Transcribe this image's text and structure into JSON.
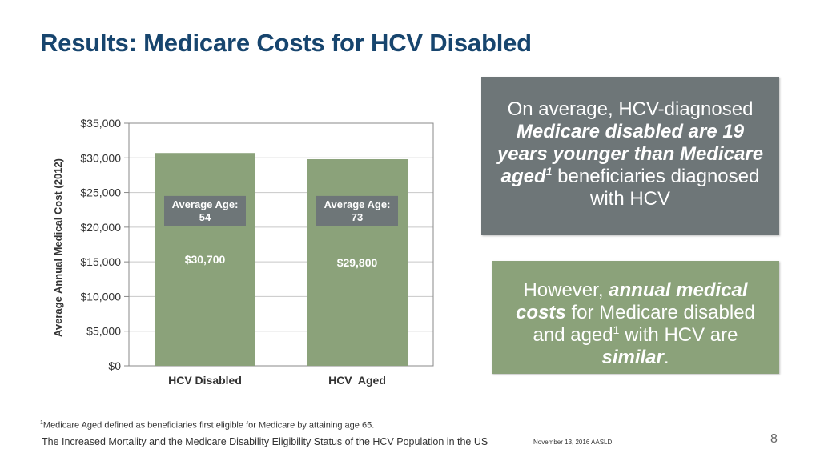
{
  "title": "Results: Medicare Costs for HCV Disabled",
  "chart_data": {
    "type": "bar",
    "categories": [
      "HCV Disabled",
      "HCV  Aged"
    ],
    "values": [
      30700,
      29800
    ],
    "value_labels": [
      "$30,700",
      "$29,800"
    ],
    "age_labels": [
      {
        "line1": "Average Age:",
        "line2": "54"
      },
      {
        "line1": "Average Age:",
        "line2": "73"
      }
    ],
    "ylabel": "Average Annual Medical Cost (2012)",
    "ylim": [
      0,
      35000
    ],
    "yticks": [
      0,
      5000,
      10000,
      15000,
      20000,
      25000,
      30000,
      35000
    ],
    "ytick_labels": [
      "$0",
      "$5,000",
      "$10,000",
      "$15,000",
      "$20,000",
      "$25,000",
      "$30,000",
      "$35,000"
    ],
    "bar_color": "#8ba27a",
    "age_box_color": "#6e7678",
    "grid": true,
    "legend": false
  },
  "callout_1": {
    "l1": "On average, HCV-diagnosed",
    "l2": "Medicare disabled are 19",
    "l3": "years younger than Medicare",
    "l4_bold": "aged",
    "l4_sup": "1",
    "l4_rest": " beneficiaries diagnosed",
    "l5": "with HCV",
    "color": "#6e7678"
  },
  "callout_2": {
    "l1_pre": "However, ",
    "l1_bold": "annual medical",
    "l2_bold": "costs",
    "l2_rest": " for Medicare disabled",
    "l3_pre": "and aged",
    "l3_sup": "1",
    "l3_rest": " with HCV are",
    "l4_bold": "similar",
    "l4_rest": ".",
    "color": "#8ba27a"
  },
  "footnote": {
    "sup": "1",
    "text": "Medicare Aged defined as beneficiaries first eligible for Medicare by attaining age 65."
  },
  "footer": {
    "title": "The Increased Mortality and the Medicare Disability Eligibility Status of the HCV Population in the US",
    "date": "November 13, 2016  AASLD",
    "page": "8"
  },
  "title_color": "#17456e"
}
